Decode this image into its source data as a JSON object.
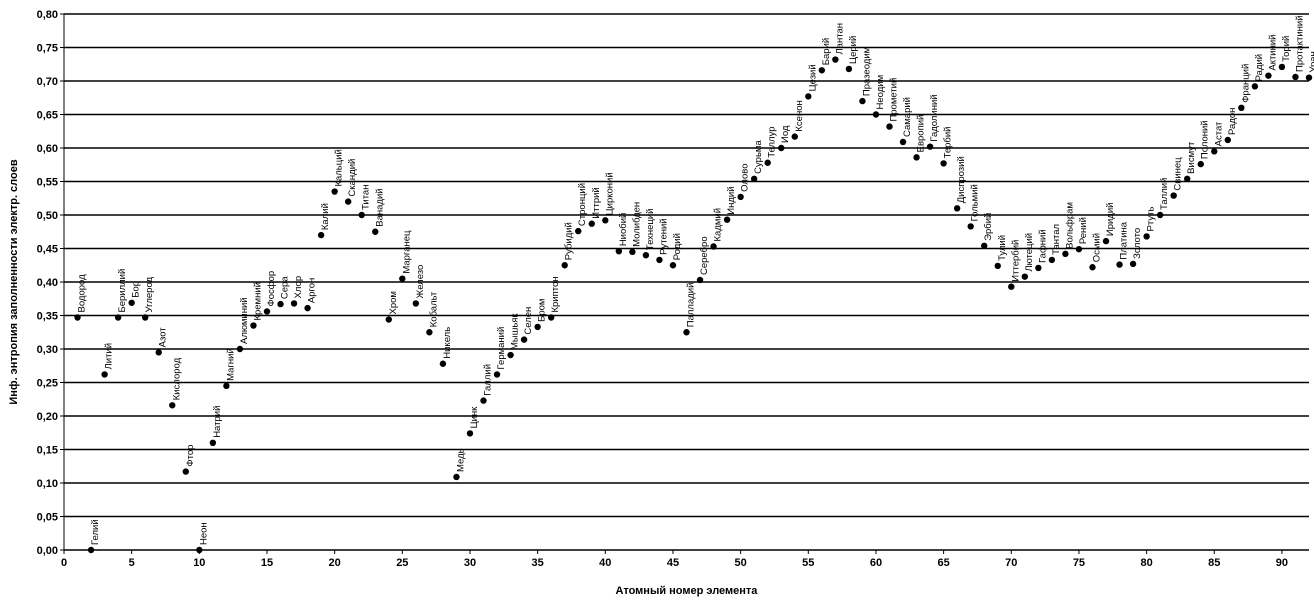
{
  "chart_data": {
    "type": "scatter",
    "title": "",
    "xlabel": "Атомный номер элемента",
    "ylabel": "Инф. энтропия заполненности электр. слоев",
    "xlim": [
      0,
      92
    ],
    "ylim": [
      0,
      0.8
    ],
    "x_ticks": [
      "0",
      "5",
      "10",
      "15",
      "20",
      "25",
      "30",
      "35",
      "40",
      "45",
      "50",
      "55",
      "60",
      "65",
      "70",
      "75",
      "80",
      "85",
      "90"
    ],
    "y_ticks": [
      "0,00",
      "0,05",
      "0,10",
      "0,15",
      "0,20",
      "0,25",
      "0,30",
      "0,35",
      "0,40",
      "0,45",
      "0,50",
      "0,55",
      "0,60",
      "0,65",
      "0,70",
      "0,75",
      "0,80"
    ],
    "grid": "horizontal",
    "marker_color": "#000000",
    "series": [
      {
        "points": [
          {
            "x": 1,
            "y": 0.347,
            "label": "Водород"
          },
          {
            "x": 2,
            "y": 0.0,
            "label": "Гелий"
          },
          {
            "x": 3,
            "y": 0.262,
            "label": "Литий"
          },
          {
            "x": 4,
            "y": 0.347,
            "label": "Бериллий"
          },
          {
            "x": 5,
            "y": 0.369,
            "label": "Бор"
          },
          {
            "x": 6,
            "y": 0.347,
            "label": "Углерод"
          },
          {
            "x": 7,
            "y": 0.295,
            "label": "Азот"
          },
          {
            "x": 8,
            "y": 0.216,
            "label": "Кислород"
          },
          {
            "x": 9,
            "y": 0.117,
            "label": "Фтор"
          },
          {
            "x": 10,
            "y": 0.0,
            "label": "Неон"
          },
          {
            "x": 11,
            "y": 0.16,
            "label": "Натрий"
          },
          {
            "x": 12,
            "y": 0.245,
            "label": "Магний"
          },
          {
            "x": 13,
            "y": 0.3,
            "label": "Алюминий"
          },
          {
            "x": 14,
            "y": 0.335,
            "label": "Кремний"
          },
          {
            "x": 15,
            "y": 0.356,
            "label": "Фосфор"
          },
          {
            "x": 16,
            "y": 0.367,
            "label": "Сера"
          },
          {
            "x": 17,
            "y": 0.368,
            "label": "Хлор"
          },
          {
            "x": 18,
            "y": 0.361,
            "label": "Аргон"
          },
          {
            "x": 19,
            "y": 0.47,
            "label": "Калий"
          },
          {
            "x": 20,
            "y": 0.535,
            "label": "Кальций"
          },
          {
            "x": 21,
            "y": 0.52,
            "label": "Скандий"
          },
          {
            "x": 22,
            "y": 0.5,
            "label": "Титан"
          },
          {
            "x": 23,
            "y": 0.475,
            "label": "Ванадий"
          },
          {
            "x": 24,
            "y": 0.344,
            "label": "Хром"
          },
          {
            "x": 25,
            "y": 0.405,
            "label": "Марганец"
          },
          {
            "x": 26,
            "y": 0.368,
            "label": "Железо"
          },
          {
            "x": 27,
            "y": 0.325,
            "label": "Кобальт"
          },
          {
            "x": 28,
            "y": 0.278,
            "label": "Никель"
          },
          {
            "x": 29,
            "y": 0.109,
            "label": "Медь"
          },
          {
            "x": 30,
            "y": 0.174,
            "label": "Цинк"
          },
          {
            "x": 31,
            "y": 0.223,
            "label": "Галлий"
          },
          {
            "x": 32,
            "y": 0.262,
            "label": "Германий"
          },
          {
            "x": 33,
            "y": 0.291,
            "label": "Мышьяк"
          },
          {
            "x": 34,
            "y": 0.314,
            "label": "Селен"
          },
          {
            "x": 35,
            "y": 0.333,
            "label": "Бром"
          },
          {
            "x": 36,
            "y": 0.347,
            "label": "Криптон"
          },
          {
            "x": 37,
            "y": 0.425,
            "label": "Рубидий"
          },
          {
            "x": 38,
            "y": 0.476,
            "label": "Стронций"
          },
          {
            "x": 39,
            "y": 0.487,
            "label": "Иттрий"
          },
          {
            "x": 40,
            "y": 0.492,
            "label": "Цирконий"
          },
          {
            "x": 41,
            "y": 0.446,
            "label": "Ниобий"
          },
          {
            "x": 42,
            "y": 0.445,
            "label": "Молибден"
          },
          {
            "x": 43,
            "y": 0.44,
            "label": "Технеций"
          },
          {
            "x": 44,
            "y": 0.433,
            "label": "Рутений"
          },
          {
            "x": 45,
            "y": 0.425,
            "label": "Родий"
          },
          {
            "x": 46,
            "y": 0.325,
            "label": "Палладий"
          },
          {
            "x": 47,
            "y": 0.403,
            "label": "Серебро"
          },
          {
            "x": 48,
            "y": 0.453,
            "label": "Кадмий"
          },
          {
            "x": 49,
            "y": 0.493,
            "label": "Индий"
          },
          {
            "x": 50,
            "y": 0.527,
            "label": "Олово"
          },
          {
            "x": 51,
            "y": 0.554,
            "label": "Сурьма"
          },
          {
            "x": 52,
            "y": 0.578,
            "label": "Теллур"
          },
          {
            "x": 53,
            "y": 0.6,
            "label": "Иод"
          },
          {
            "x": 54,
            "y": 0.617,
            "label": "Ксенон"
          },
          {
            "x": 55,
            "y": 0.677,
            "label": "Цезий"
          },
          {
            "x": 56,
            "y": 0.716,
            "label": "Барий"
          },
          {
            "x": 57,
            "y": 0.732,
            "label": "Лантан"
          },
          {
            "x": 58,
            "y": 0.718,
            "label": "Церий"
          },
          {
            "x": 59,
            "y": 0.67,
            "label": "Празеодим"
          },
          {
            "x": 60,
            "y": 0.65,
            "label": "Неодим"
          },
          {
            "x": 61,
            "y": 0.632,
            "label": "Прометий"
          },
          {
            "x": 62,
            "y": 0.609,
            "label": "Самарий"
          },
          {
            "x": 63,
            "y": 0.586,
            "label": "Европий"
          },
          {
            "x": 64,
            "y": 0.602,
            "label": "Гадолиний"
          },
          {
            "x": 65,
            "y": 0.577,
            "label": "Тербий"
          },
          {
            "x": 66,
            "y": 0.51,
            "label": "Диспрозий"
          },
          {
            "x": 67,
            "y": 0.483,
            "label": "Гольмий"
          },
          {
            "x": 68,
            "y": 0.454,
            "label": "Эрбий"
          },
          {
            "x": 69,
            "y": 0.424,
            "label": "Тулий"
          },
          {
            "x": 70,
            "y": 0.393,
            "label": "Иттербий"
          },
          {
            "x": 71,
            "y": 0.408,
            "label": "Лютеций"
          },
          {
            "x": 72,
            "y": 0.421,
            "label": "Гафний"
          },
          {
            "x": 73,
            "y": 0.433,
            "label": "Тантал"
          },
          {
            "x": 74,
            "y": 0.442,
            "label": "Вольфрам"
          },
          {
            "x": 75,
            "y": 0.449,
            "label": "Рений"
          },
          {
            "x": 76,
            "y": 0.422,
            "label": "Осмий"
          },
          {
            "x": 77,
            "y": 0.461,
            "label": "Иридий"
          },
          {
            "x": 78,
            "y": 0.426,
            "label": "Платина"
          },
          {
            "x": 79,
            "y": 0.427,
            "label": "Золото"
          },
          {
            "x": 80,
            "y": 0.468,
            "label": "Ртуть"
          },
          {
            "x": 81,
            "y": 0.5,
            "label": "Таллий"
          },
          {
            "x": 82,
            "y": 0.529,
            "label": "Свинец"
          },
          {
            "x": 83,
            "y": 0.554,
            "label": "Висмут"
          },
          {
            "x": 84,
            "y": 0.576,
            "label": "Полоний"
          },
          {
            "x": 85,
            "y": 0.595,
            "label": "Астат"
          },
          {
            "x": 86,
            "y": 0.612,
            "label": "Радон"
          },
          {
            "x": 87,
            "y": 0.66,
            "label": "Франций"
          },
          {
            "x": 88,
            "y": 0.692,
            "label": "Радий"
          },
          {
            "x": 89,
            "y": 0.708,
            "label": "Актиний"
          },
          {
            "x": 90,
            "y": 0.721,
            "label": "Торий"
          },
          {
            "x": 91,
            "y": 0.706,
            "label": "Протактиний"
          },
          {
            "x": 92,
            "y": 0.705,
            "label": "Уран"
          }
        ]
      }
    ]
  }
}
